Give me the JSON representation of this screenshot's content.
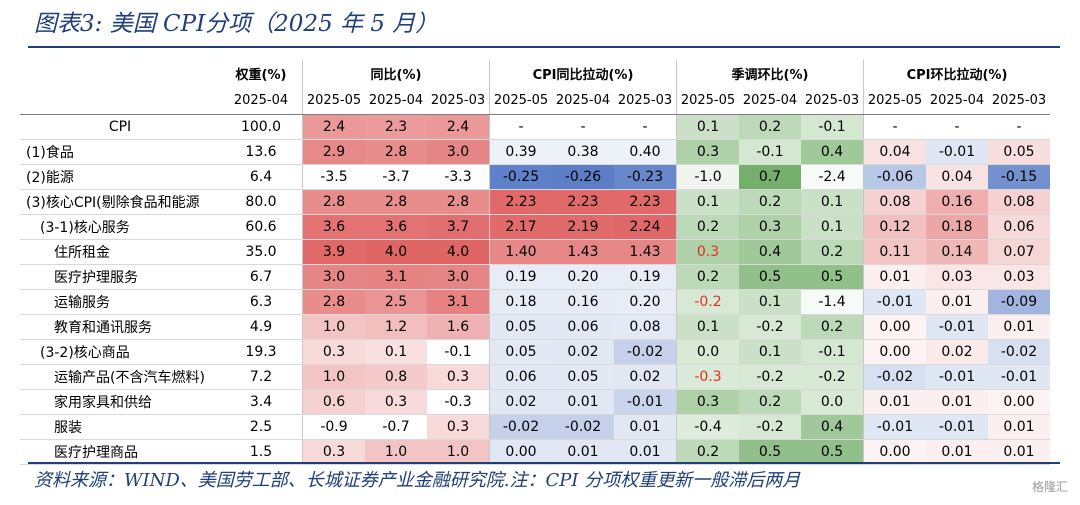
{
  "title": "图表3: 美国 CPI分项（2025 年 5 月）",
  "source": "资料来源：WIND、美国劳工部、长城证券产业金融研究院.注：CPI 分项权重更新一般滞后两月",
  "watermark": "格隆汇",
  "header": {
    "weight": "权重(%)",
    "weight_date": "2025-04",
    "groups": [
      "同比(%)",
      "CPI同比拉动(%)",
      "季调环比(%)",
      "CPI环比拉动(%)"
    ],
    "dates": [
      "2025-05",
      "2025-04",
      "2025-03"
    ]
  },
  "palette": {
    "red_strong": "#e06666",
    "red_mid": "#eca0a0",
    "red_light": "#f6d6d6",
    "blue_strong": "#5b7ec7",
    "blue_light": "#dfe6f3",
    "green_strong": "#66a85c",
    "green_mid": "#9fcb94",
    "green_light": "#d9ebd3",
    "red_text": "#e0301e"
  },
  "rows": [
    {
      "label": "CPI",
      "weight": "100.0",
      "yoy": [
        "2.4",
        "2.3",
        "2.4"
      ],
      "yoy_pull": [
        "-",
        "-",
        "-"
      ],
      "mom": [
        "0.1",
        "0.2",
        "-0.1"
      ],
      "mom_pull": [
        "-",
        "-",
        "-"
      ]
    },
    {
      "label": "(1)食品",
      "weight": "13.6",
      "yoy": [
        "2.9",
        "2.8",
        "3.0"
      ],
      "yoy_pull": [
        "0.39",
        "0.38",
        "0.40"
      ],
      "mom": [
        "0.3",
        "-0.1",
        "0.4"
      ],
      "mom_pull": [
        "0.04",
        "-0.01",
        "0.05"
      ]
    },
    {
      "label": "(2)能源",
      "weight": "6.4",
      "yoy": [
        "-3.5",
        "-3.7",
        "-3.3"
      ],
      "yoy_pull": [
        "-0.25",
        "-0.26",
        "-0.23"
      ],
      "mom": [
        "-1.0",
        "0.7",
        "-2.4"
      ],
      "mom_pull": [
        "-0.06",
        "0.04",
        "-0.15"
      ]
    },
    {
      "label": "(3)核心CPI(剔除食品和能源",
      "weight": "80.0",
      "yoy": [
        "2.8",
        "2.8",
        "2.8"
      ],
      "yoy_pull": [
        "2.23",
        "2.23",
        "2.23"
      ],
      "mom": [
        "0.1",
        "0.2",
        "0.1"
      ],
      "mom_pull": [
        "0.08",
        "0.16",
        "0.08"
      ]
    },
    {
      "label": "(3-1)核心服务",
      "weight": "60.6",
      "yoy": [
        "3.6",
        "3.6",
        "3.7"
      ],
      "yoy_pull": [
        "2.17",
        "2.19",
        "2.24"
      ],
      "mom": [
        "0.2",
        "0.3",
        "0.1"
      ],
      "mom_pull": [
        "0.12",
        "0.18",
        "0.06"
      ]
    },
    {
      "label": "住所租金",
      "weight": "35.0",
      "yoy": [
        "3.9",
        "4.0",
        "4.0"
      ],
      "yoy_pull": [
        "1.40",
        "1.43",
        "1.43"
      ],
      "mom": [
        "0.3",
        "0.4",
        "0.2"
      ],
      "mom_pull": [
        "0.11",
        "0.14",
        "0.07"
      ]
    },
    {
      "label": "医疗护理服务",
      "weight": "6.7",
      "yoy": [
        "3.0",
        "3.1",
        "3.0"
      ],
      "yoy_pull": [
        "0.19",
        "0.20",
        "0.19"
      ],
      "mom": [
        "0.2",
        "0.5",
        "0.5"
      ],
      "mom_pull": [
        "0.01",
        "0.03",
        "0.03"
      ]
    },
    {
      "label": "运输服务",
      "weight": "6.3",
      "yoy": [
        "2.8",
        "2.5",
        "3.1"
      ],
      "yoy_pull": [
        "0.18",
        "0.16",
        "0.20"
      ],
      "mom": [
        "-0.2",
        "0.1",
        "-1.4"
      ],
      "mom_pull": [
        "-0.01",
        "0.01",
        "-0.09"
      ]
    },
    {
      "label": "教育和通讯服务",
      "weight": "4.9",
      "yoy": [
        "1.0",
        "1.2",
        "1.6"
      ],
      "yoy_pull": [
        "0.05",
        "0.06",
        "0.08"
      ],
      "mom": [
        "0.1",
        "-0.2",
        "0.2"
      ],
      "mom_pull": [
        "0.00",
        "-0.01",
        "0.01"
      ]
    },
    {
      "label": "(3-2)核心商品",
      "weight": "19.3",
      "yoy": [
        "0.3",
        "0.1",
        "-0.1"
      ],
      "yoy_pull": [
        "0.05",
        "0.02",
        "-0.02"
      ],
      "mom": [
        "0.0",
        "0.1",
        "-0.1"
      ],
      "mom_pull": [
        "0.00",
        "0.02",
        "-0.02"
      ]
    },
    {
      "label": "运输产品(不含汽车燃料)",
      "weight": "7.2",
      "yoy": [
        "1.0",
        "0.8",
        "0.3"
      ],
      "yoy_pull": [
        "0.06",
        "0.05",
        "0.02"
      ],
      "mom": [
        "-0.3",
        "-0.2",
        "-0.2"
      ],
      "mom_pull": [
        "-0.02",
        "-0.01",
        "-0.01"
      ]
    },
    {
      "label": "家用家具和供给",
      "weight": "3.4",
      "yoy": [
        "0.6",
        "0.3",
        "-0.3"
      ],
      "yoy_pull": [
        "0.02",
        "0.01",
        "-0.01"
      ],
      "mom": [
        "0.3",
        "0.2",
        "0.0"
      ],
      "mom_pull": [
        "0.01",
        "0.01",
        "0.00"
      ]
    },
    {
      "label": "服装",
      "weight": "2.5",
      "yoy": [
        "-0.9",
        "-0.7",
        "0.3"
      ],
      "yoy_pull": [
        "-0.02",
        "-0.02",
        "0.01"
      ],
      "mom": [
        "-0.4",
        "-0.2",
        "0.4"
      ],
      "mom_pull": [
        "-0.01",
        "-0.01",
        "0.01"
      ]
    },
    {
      "label": "医疗护理商品",
      "weight": "1.5",
      "yoy": [
        "0.3",
        "1.0",
        "1.0"
      ],
      "yoy_pull": [
        "0.00",
        "0.01",
        "0.01"
      ],
      "mom": [
        "0.2",
        "0.5",
        "0.5"
      ],
      "mom_pull": [
        "0.00",
        "0.01",
        "0.01"
      ]
    }
  ]
}
